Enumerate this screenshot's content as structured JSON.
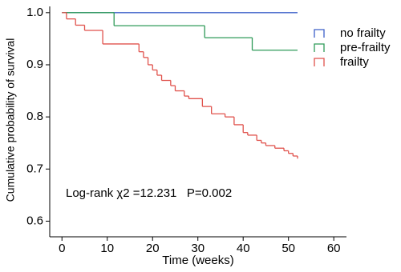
{
  "chart_data": {
    "type": "step",
    "xlabel": "Time (weeks)",
    "ylabel": "Cumulative probability of survival",
    "annotation": "Log-rank χ2 =12.231   P=0.002",
    "xlim": [
      -2.7,
      62.8
    ],
    "ylim": [
      0.57,
      1.012
    ],
    "xticks": [
      0,
      10,
      20,
      30,
      40,
      50,
      60
    ],
    "yticks": [
      0.6,
      0.7,
      0.8,
      0.9,
      {
        "value": 1,
        "label": "1.0"
      }
    ],
    "legend": "upper right",
    "series": [
      {
        "name": "no frailty",
        "color": "#3c5fc8",
        "x": [
          0,
          52
        ],
        "values": [
          1,
          1
        ]
      },
      {
        "name": "pre-frailty",
        "color": "#2e9a58",
        "x": [
          0,
          11.5,
          31.5,
          42,
          52
        ],
        "values": [
          1,
          0.975,
          0.952,
          0.928,
          0.928
        ]
      },
      {
        "name": "frailty",
        "color": "#e0524c",
        "x": [
          0,
          1,
          3,
          5,
          9,
          17,
          18,
          19,
          20,
          21,
          22,
          24,
          25,
          27,
          28,
          31,
          33,
          36,
          38,
          40,
          41,
          43,
          44,
          45,
          47,
          49,
          50,
          51,
          52
        ],
        "values": [
          1,
          0.988,
          0.976,
          0.966,
          0.94,
          0.925,
          0.914,
          0.9,
          0.89,
          0.88,
          0.87,
          0.86,
          0.85,
          0.84,
          0.835,
          0.82,
          0.806,
          0.8,
          0.785,
          0.77,
          0.765,
          0.755,
          0.75,
          0.745,
          0.74,
          0.735,
          0.73,
          0.725,
          0.72
        ]
      }
    ]
  }
}
